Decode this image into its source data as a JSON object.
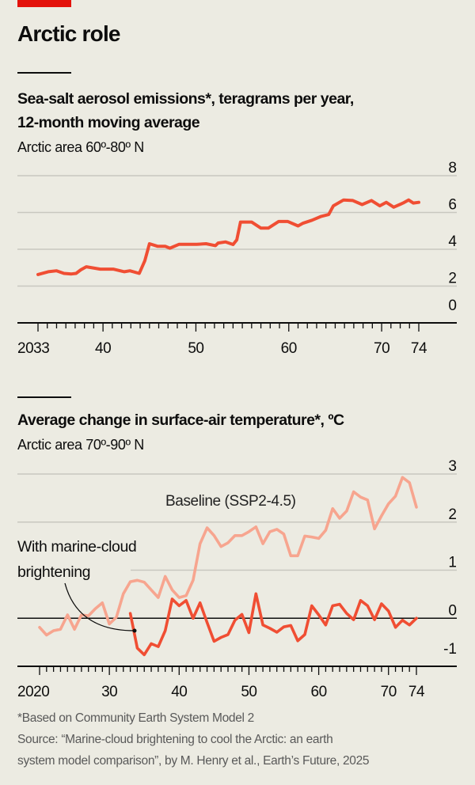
{
  "header": {
    "title": "Arctic role",
    "accent_color": "#E3120B"
  },
  "footnote": {
    "note": "*Based on Community Earth System Model 2",
    "source_line1": "Source: “Marine-cloud brightening to cool the Arctic: an earth",
    "source_line2": "system model comparison”, by M. Henry et al., Earth’s Future, 2025"
  },
  "chart_data": [
    {
      "type": "line",
      "title": "Sea-salt aerosol emissions*, teragrams per year,",
      "title_line2": "12-month moving average",
      "subtitle": "Arctic area 60º-80º N",
      "xlabel": "",
      "ylabel": "",
      "xlim": [
        2033,
        2074
      ],
      "ylim": [
        0,
        8
      ],
      "yticks": [
        0,
        2,
        4,
        6,
        8
      ],
      "ytick_labels": [
        "0",
        "2",
        "4",
        "6",
        "8"
      ],
      "xticks": [
        2033,
        2040,
        2050,
        2060,
        2070,
        2074
      ],
      "xtick_labels": [
        "2033",
        "40",
        "50",
        "60",
        "70",
        "74"
      ],
      "grid": true,
      "series": [
        {
          "name": "Sea-salt aerosol emissions",
          "color": "#F04E33",
          "x": [
            2033,
            2034.1,
            2035,
            2035.8,
            2036.6,
            2037.1,
            2037.6,
            2038.2,
            2039.7,
            2041.1,
            2042.3,
            2042.9,
            2043.9,
            2044.5,
            2045,
            2045.9,
            2046.7,
            2047.2,
            2048.2,
            2050.1,
            2051.1,
            2052.1,
            2052.4,
            2053.2,
            2054,
            2054.4,
            2054.8,
            2056,
            2057,
            2057.8,
            2058.9,
            2059.9,
            2061,
            2061.5,
            2062.5,
            2063.5,
            2064.3,
            2064.8,
            2065.9,
            2066.9,
            2067.9,
            2068.9,
            2069.8,
            2070.5,
            2071.3,
            2072.3,
            2072.9,
            2073.4,
            2074
          ],
          "values": [
            2.63,
            2.78,
            2.83,
            2.69,
            2.66,
            2.69,
            2.88,
            3.05,
            2.92,
            2.92,
            2.78,
            2.83,
            2.69,
            3.37,
            4.3,
            4.16,
            4.16,
            4.06,
            4.27,
            4.27,
            4.3,
            4.2,
            4.34,
            4.4,
            4.26,
            4.51,
            5.48,
            5.48,
            5.15,
            5.15,
            5.51,
            5.51,
            5.27,
            5.41,
            5.58,
            5.79,
            5.89,
            6.36,
            6.68,
            6.65,
            6.43,
            6.65,
            6.36,
            6.55,
            6.29,
            6.51,
            6.68,
            6.51,
            6.55
          ]
        }
      ]
    },
    {
      "type": "line",
      "title": "Average change in surface-air temperature*, ºC",
      "subtitle": "Arctic area 70º-90º N",
      "xlabel": "",
      "ylabel": "",
      "xlim": [
        2020,
        2074
      ],
      "ylim": [
        -1,
        3
      ],
      "yticks": [
        -1,
        0,
        1,
        2,
        3
      ],
      "ytick_labels": [
        "-1",
        "0",
        "1",
        "2",
        "3"
      ],
      "xticks": [
        2020,
        2030,
        2040,
        2050,
        2060,
        2070,
        2074
      ],
      "xtick_labels": [
        "2020",
        "30",
        "40",
        "50",
        "60",
        "70",
        "74"
      ],
      "grid": true,
      "annotations": {
        "baseline_label": "Baseline (SSP2-4.5)",
        "mcb_label_line1": "With marine-cloud",
        "mcb_label_line2": "brightening"
      },
      "series": [
        {
          "name": "Baseline (SSP2-4.5)",
          "color": "#F7A58F",
          "x": [
            2020,
            2021,
            2022,
            2023,
            2024,
            2025,
            2026,
            2027,
            2028,
            2029,
            2030,
            2031,
            2032,
            2033,
            2034,
            2035,
            2036,
            2037,
            2038,
            2039,
            2040,
            2041,
            2042,
            2043,
            2044,
            2045,
            2046,
            2047,
            2048,
            2049,
            2050,
            2051,
            2052,
            2053,
            2054,
            2055,
            2056,
            2057,
            2058,
            2059,
            2060,
            2061,
            2062,
            2063,
            2064,
            2065,
            2066,
            2067,
            2068,
            2069,
            2070,
            2071,
            2072,
            2073,
            2074
          ],
          "values": [
            -0.19,
            -0.35,
            -0.26,
            -0.23,
            0.07,
            -0.23,
            0.07,
            0.05,
            0.2,
            0.32,
            -0.12,
            0.02,
            0.51,
            0.76,
            0.79,
            0.75,
            0.59,
            0.43,
            0.87,
            0.59,
            0.43,
            0.47,
            0.79,
            1.55,
            1.88,
            1.72,
            1.49,
            1.57,
            1.72,
            1.72,
            1.8,
            1.9,
            1.55,
            1.8,
            1.85,
            1.75,
            1.3,
            1.3,
            1.71,
            1.69,
            1.66,
            1.83,
            2.28,
            2.08,
            2.23,
            2.63,
            2.52,
            2.46,
            1.86,
            2.13,
            2.38,
            2.54,
            2.93,
            2.82,
            2.31
          ]
        },
        {
          "name": "With marine-cloud brightening",
          "color": "#F04E33",
          "x": [
            2033,
            2033.5,
            2034,
            2035,
            2036,
            2037,
            2038,
            2039,
            2040,
            2041,
            2042,
            2043,
            2044,
            2045,
            2046,
            2047,
            2048,
            2049,
            2050,
            2051,
            2052,
            2053,
            2054,
            2055,
            2056,
            2057,
            2058,
            2059,
            2060,
            2061,
            2062,
            2063,
            2064,
            2065,
            2066,
            2067,
            2068,
            2069,
            2070,
            2071,
            2072,
            2073,
            2074
          ],
          "values": [
            0.1,
            -0.26,
            -0.62,
            -0.76,
            -0.53,
            -0.59,
            -0.26,
            0.4,
            0.26,
            0.37,
            0.0,
            0.32,
            -0.09,
            -0.48,
            -0.4,
            -0.34,
            -0.04,
            0.08,
            -0.3,
            0.51,
            -0.14,
            -0.21,
            -0.29,
            -0.18,
            -0.15,
            -0.47,
            -0.34,
            0.26,
            0.07,
            -0.14,
            0.26,
            0.29,
            0.1,
            -0.03,
            0.37,
            0.26,
            -0.03,
            0.3,
            0.15,
            -0.19,
            -0.04,
            -0.14,
            0.0
          ]
        }
      ]
    }
  ]
}
